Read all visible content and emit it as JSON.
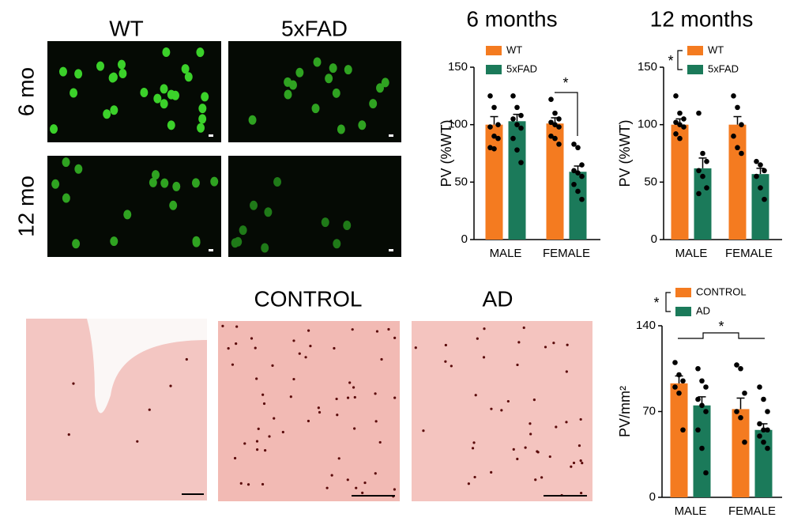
{
  "image_labels": {
    "top_columns": [
      "WT",
      "5xFAD"
    ],
    "top_rows": [
      "6 mo",
      "12 mo"
    ],
    "bottom_columns": [
      "CONTROL",
      "AD"
    ]
  },
  "chart_data": [
    {
      "type": "bar",
      "title": "6 months",
      "y_label": "PV (%WT)",
      "categories": [
        "MALE",
        "FEMALE"
      ],
      "series": [
        {
          "name": "WT",
          "color": "#f47b20",
          "values": [
            100,
            101
          ],
          "errors": [
            7,
            5
          ],
          "points": [
            [
              125,
              115,
              100,
              98,
              90,
              88,
              80,
              79
            ],
            [
              122,
              110,
              105,
              102,
              100,
              98,
              90,
              88,
              83
            ]
          ]
        },
        {
          "name": "5xFAD",
          "color": "#1b7a5a",
          "values": [
            103,
            59
          ],
          "errors": [
            6,
            5
          ],
          "points": [
            [
              125,
              115,
              108,
              105,
              100,
              97,
              88,
              78,
              67
            ],
            [
              83,
              80,
              65,
              60,
              58,
              55,
              48,
              42,
              35
            ]
          ]
        }
      ],
      "ylim": [
        0,
        150
      ],
      "yticks": [
        0,
        50,
        100,
        150
      ],
      "legend": "top-left",
      "annotations": [
        "*"
      ]
    },
    {
      "type": "bar",
      "title": "12 months",
      "y_label": "PV (%WT)",
      "categories": [
        "MALE",
        "FEMALE"
      ],
      "series": [
        {
          "name": "WT",
          "color": "#f47b20",
          "values": [
            100,
            100
          ],
          "errors": [
            5,
            7
          ],
          "points": [
            [
              125,
              110,
              105,
              102,
              100,
              98,
              92,
              88
            ],
            [
              125,
              115,
              100,
              90,
              80,
              75
            ]
          ]
        },
        {
          "name": "5xFAD",
          "color": "#1b7a5a",
          "values": [
            62,
            57
          ],
          "errors": [
            9,
            5
          ],
          "points": [
            [
              110,
              75,
              68,
              60,
              55,
              45,
              40
            ],
            [
              68,
              65,
              60,
              55,
              45,
              35
            ]
          ]
        }
      ],
      "ylim": [
        0,
        150
      ],
      "yticks": [
        0,
        50,
        100,
        150
      ],
      "legend": "top-left",
      "annotations": [
        "*"
      ]
    },
    {
      "type": "bar",
      "y_label": "PV/mm²",
      "categories": [
        "MALE",
        "FEMALE"
      ],
      "series": [
        {
          "name": "CONTROL",
          "color": "#f47b20",
          "values": [
            93,
            72
          ],
          "errors": [
            6,
            9
          ],
          "points": [
            [
              110,
              100,
              95,
              90,
              85,
              55
            ],
            [
              108,
              105,
              85,
              70,
              65,
              45
            ]
          ]
        },
        {
          "name": "AD",
          "color": "#1b7a5a",
          "values": [
            75,
            55
          ],
          "errors": [
            7,
            5
          ],
          "points": [
            [
              105,
              95,
              90,
              80,
              75,
              70,
              55,
              40,
              20
            ],
            [
              90,
              80,
              70,
              60,
              55,
              55,
              50,
              45,
              40
            ]
          ]
        }
      ],
      "ylim": [
        0,
        140
      ],
      "yticks": [
        0,
        70,
        140
      ],
      "legend": "top-left",
      "annotations": [
        "*",
        "*"
      ]
    }
  ]
}
